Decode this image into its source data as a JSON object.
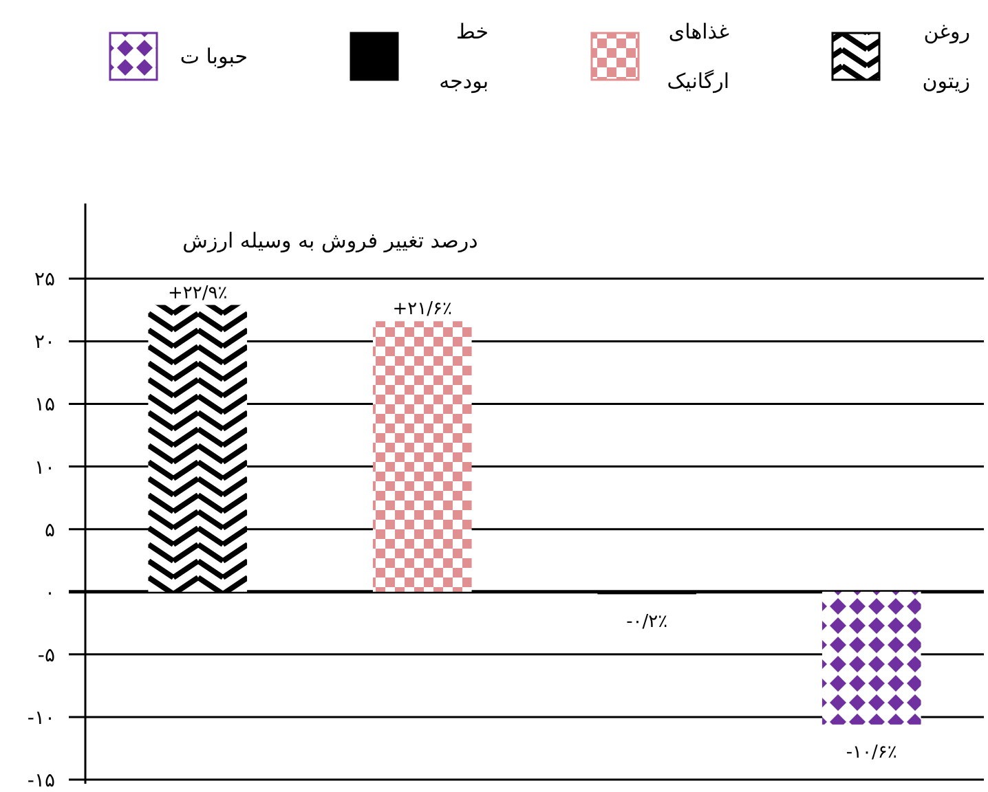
{
  "chart_data": {
    "type": "bar",
    "title": "درصد تغییر فروش به وسیله ارزش",
    "categories": [
      null,
      null,
      null,
      null
    ],
    "series": [
      {
        "name": "روغن\nزیتون",
        "color": "#000000",
        "values": [
          22.9,
          null,
          null,
          null
        ],
        "value_labels": [
          "+۲۲/۹٪",
          null,
          null,
          null
        ]
      },
      {
        "name": "غذاهای\nارگانیک",
        "color": "#e09090",
        "values": [
          null,
          21.6,
          null,
          null
        ],
        "value_labels": [
          null,
          "+۲۱/۶٪",
          null,
          null
        ]
      },
      {
        "name": "خط\nبودجه",
        "color": "#000000",
        "values": [
          null,
          null,
          -0.2,
          null
        ],
        "value_labels": [
          null,
          null,
          "-۰/۲٪",
          null
        ]
      },
      {
        "name": "حبوبا ت",
        "color": "#7030a0",
        "values": [
          null,
          null,
          null,
          -10.6
        ],
        "value_labels": [
          null,
          null,
          null,
          "-۱۰/۶٪"
        ]
      }
    ],
    "ylim": [
      -15,
      31
    ],
    "yticks": [
      {
        "value": 25,
        "label": "۲۵"
      },
      {
        "value": 20,
        "label": "۲۰"
      },
      {
        "value": 15,
        "label": "۱۵"
      },
      {
        "value": 10,
        "label": "۱۰"
      },
      {
        "value": 5,
        "label": "۵"
      },
      {
        "value": 0,
        "label": "۰"
      },
      {
        "value": -5,
        "label": "-۵"
      },
      {
        "value": -10,
        "label": "-۱۰"
      },
      {
        "value": -15,
        "label": "-۱۵"
      }
    ],
    "grid": "y",
    "legend": "top"
  }
}
